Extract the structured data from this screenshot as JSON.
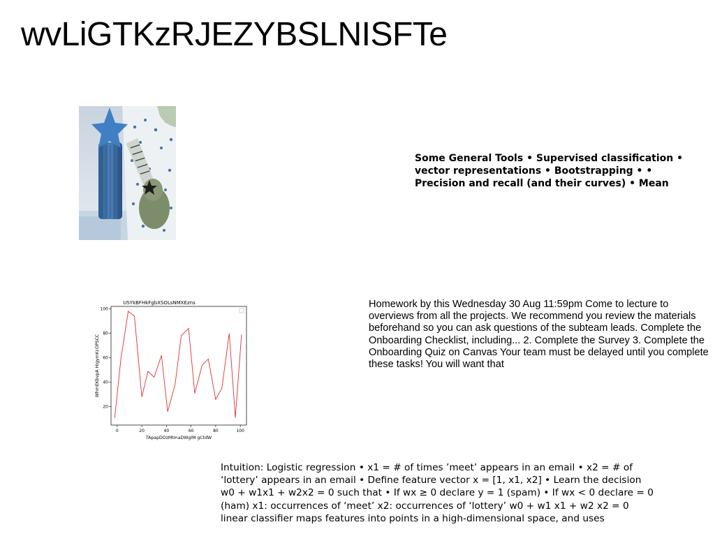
{
  "slide": {
    "title": "wvLiGTKzRJEZYBSLNISFTe",
    "tools_text": "Some General Tools • Supervised classification • vector representations • Bootstrapping • • Precision and recall (and their curves) • Mean",
    "homework_text": "Homework by this Wednesday 30 Aug 11:59pm Come to lecture to overviews from all the projects. We recommend you review the materials beforehand so you can ask questions of the subteam leads. Complete the Onboarding Checklist, including... 2. Complete the Survey 3. Complete the Onboarding Quiz on Canvas Your team must be delayed until you complete these tasks! You will want that",
    "intuition_text": "Intuition: Logistic regression • x1 = # of times ’meet’ appears in an email • x2 = # of ‘lottery’ appears in an email • Define feature vector x = [1, x1, x2] • Learn the decision w0 + w1x1 + w2x2 = 0 such that • If w\u001fx ≥ 0 declare y = 1 (spam) • If w\u001fx < 0 declare = 0 (ham) x1: occurrences of ‘meet’ x2: occurrences of ‘lottery’ w0 + w1 x1 + w2 x2 = 0 linear classifier maps features into points in a high-dimensional space, and uses"
  },
  "photo": {
    "description_icon": "photo-toy-guitar-icon"
  },
  "chart_data": {
    "type": "line",
    "title": "USYkBFHkFgbXSOLsNMXEzns",
    "xlabel": "TApapDOzMtmaDWgIM gCtdW",
    "ylabel": "WhmEKbvpA HIgymKcOPSCC",
    "xlim": [
      -5,
      105
    ],
    "ylim": [
      5,
      102
    ],
    "xticks": [
      0,
      20,
      40,
      60,
      80,
      100
    ],
    "yticks": [
      20,
      40,
      60,
      80,
      100
    ],
    "legend": "top-right",
    "grid": false,
    "color": "#e03030",
    "series": [
      {
        "x": [
          -2,
          3,
          9,
          14,
          20,
          25,
          30,
          36,
          41,
          47,
          52,
          58,
          63,
          69,
          74,
          80,
          85,
          91,
          96,
          101
        ],
        "y": [
          11,
          59,
          98,
          94,
          28,
          49,
          44,
          62,
          16,
          38,
          78,
          84,
          31,
          54,
          59,
          26,
          35,
          80,
          11,
          79
        ]
      }
    ]
  }
}
